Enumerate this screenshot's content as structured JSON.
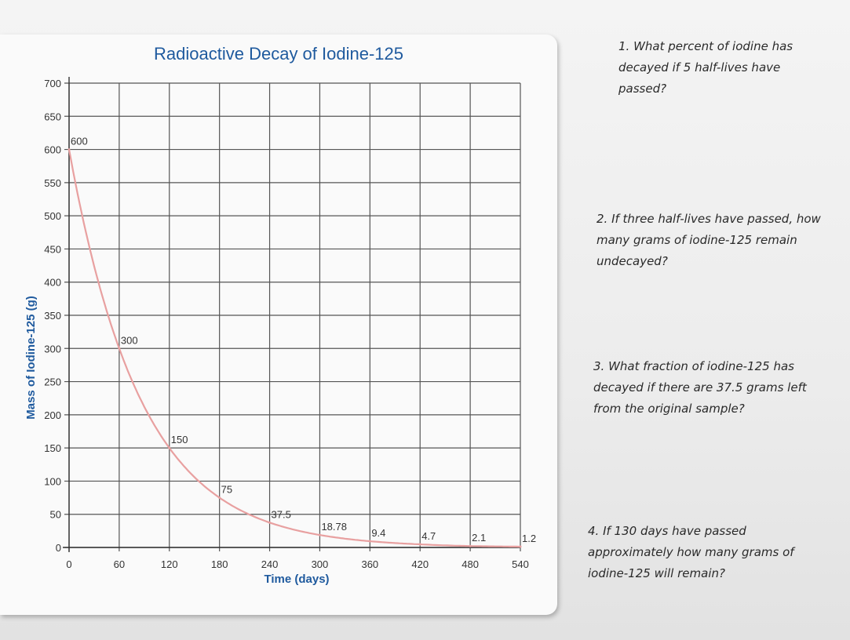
{
  "chart_data": {
    "type": "line",
    "title": "Radioactive Decay of Iodine-125",
    "xlabel": "Time (days)",
    "ylabel": "Mass of Iodine-125 (g)",
    "xlim": [
      0,
      540
    ],
    "ylim": [
      0,
      700
    ],
    "x_ticks": [
      0,
      60,
      120,
      180,
      240,
      300,
      360,
      420,
      480,
      540
    ],
    "y_ticks": [
      0,
      50,
      100,
      150,
      200,
      250,
      300,
      350,
      400,
      450,
      500,
      550,
      600,
      650,
      700
    ],
    "grid": true,
    "series": [
      {
        "x": [
          0,
          60,
          120,
          180,
          240,
          300,
          360,
          420,
          480,
          540
        ],
        "values": [
          600,
          300,
          150,
          75,
          37.5,
          18.78,
          9.4,
          4.7,
          2.1,
          1.2
        ],
        "color": "#e8a0a0"
      }
    ],
    "data_labels": [
      "600",
      "300",
      "150",
      "75",
      "37.5",
      "18.78",
      "9.4",
      "4.7",
      "2.1",
      "1.2"
    ]
  },
  "colors": {
    "title": "#1f5a9e",
    "axis_text": "#333333",
    "grid": "#555555",
    "curve": "#e8a0a0"
  },
  "questions": [
    "1. What percent of iodine has decayed if 5 half-lives have passed?",
    "2. If three half-lives have passed, how many grams of iodine-125 remain undecayed?",
    "3. What fraction of iodine-125 has decayed if there are 37.5 grams left from the original sample?",
    "4. If 130 days have passed approximately how many grams of iodine-125 will remain?"
  ]
}
